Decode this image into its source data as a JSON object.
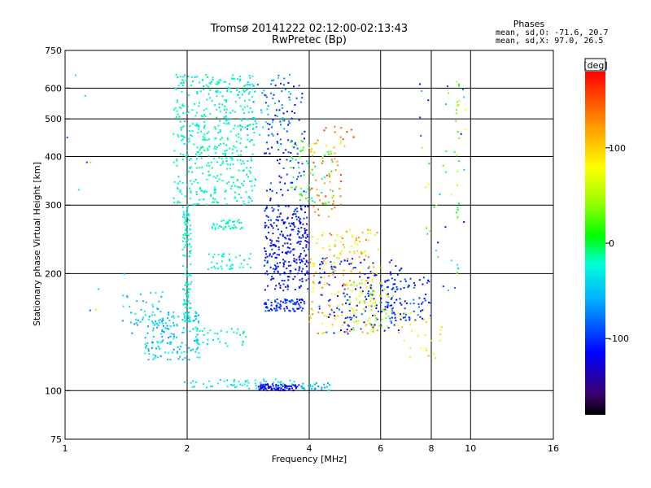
{
  "chart_data": {
    "type": "scatter",
    "title": "Tromsø 20141222 02:12:00-02:13:43",
    "subtitle": "RwPretec (Bp)",
    "xlabel": "Frequency [MHz]",
    "ylabel": "Stationary phase Virtual Height [km]",
    "x_scale": "log",
    "y_scale": "log",
    "xlim": [
      1,
      16
    ],
    "ylim": [
      75,
      750
    ],
    "x_ticks": [
      {
        "value": 1,
        "label": "1"
      },
      {
        "value": 2,
        "label": "2"
      },
      {
        "value": 4,
        "label": "4"
      },
      {
        "value": 6,
        "label": "6"
      },
      {
        "value": 8,
        "label": "8"
      },
      {
        "value": 10,
        "label": "10"
      },
      {
        "value": 16,
        "label": "16"
      }
    ],
    "x_grid": [
      2,
      4,
      6,
      8,
      10
    ],
    "y_ticks": [
      {
        "value": 75,
        "label": "75"
      },
      {
        "value": 100,
        "label": "100"
      },
      {
        "value": 200,
        "label": "200"
      },
      {
        "value": 300,
        "label": "300"
      },
      {
        "value": 400,
        "label": "400"
      },
      {
        "value": 500,
        "label": "500"
      },
      {
        "value": 600,
        "label": "600"
      },
      {
        "value": 750,
        "label": "750"
      }
    ],
    "y_grid": [
      100,
      200,
      300,
      400,
      500,
      600
    ],
    "grid": true,
    "stats": {
      "header": "Phases",
      "line1": "mean, sd,O: -71.6, 20.7",
      "line2": "mean, sd,X:  97.0, 26.5"
    },
    "colorbar": {
      "label": "[deg]",
      "range": [
        -180,
        180
      ],
      "ticks": [
        {
          "value": 100,
          "label": "100"
        },
        {
          "value": 0,
          "label": "0"
        },
        {
          "value": -100,
          "label": "-100"
        }
      ]
    },
    "clusters": [
      {
        "x": [
          1.85,
          2.95
        ],
        "y": [
          300,
          650
        ],
        "phase": [
          -40,
          -5
        ],
        "n": 500
      },
      {
        "x": [
          1.95,
          2.05
        ],
        "y": [
          150,
          300
        ],
        "phase": [
          -40,
          -10
        ],
        "n": 120
      },
      {
        "x": [
          1.55,
          2.15
        ],
        "y": [
          120,
          160
        ],
        "phase": [
          -70,
          -20
        ],
        "n": 150
      },
      {
        "x": [
          1.38,
          1.75
        ],
        "y": [
          140,
          180
        ],
        "phase": [
          -70,
          -20
        ],
        "n": 40
      },
      {
        "x": [
          2.1,
          2.8
        ],
        "y": [
          130,
          145
        ],
        "phase": [
          -40,
          -10
        ],
        "n": 40
      },
      {
        "x": [
          2.3,
          2.75
        ],
        "y": [
          260,
          275
        ],
        "phase": [
          -40,
          -10
        ],
        "n": 40
      },
      {
        "x": [
          2.25,
          2.9
        ],
        "y": [
          205,
          225
        ],
        "phase": [
          -30,
          -10
        ],
        "n": 40
      },
      {
        "x": [
          1.95,
          3.7
        ],
        "y": [
          101,
          107
        ],
        "phase": [
          -50,
          -15
        ],
        "n": 60
      },
      {
        "x": [
          3.0,
          3.8
        ],
        "y": [
          100,
          104
        ],
        "phase": [
          -130,
          -100
        ],
        "n": 80
      },
      {
        "x": [
          3.8,
          4.5
        ],
        "y": [
          100,
          105
        ],
        "phase": [
          -70,
          -30
        ],
        "n": 30
      },
      {
        "x": [
          3.1,
          4.0
        ],
        "y": [
          180,
          300
        ],
        "phase": [
          -130,
          -90
        ],
        "n": 280
      },
      {
        "x": [
          3.1,
          3.9
        ],
        "y": [
          160,
          172
        ],
        "phase": [
          -120,
          -80
        ],
        "n": 80
      },
      {
        "x": [
          3.1,
          3.9
        ],
        "y": [
          300,
          620
        ],
        "phase": [
          -130,
          -80
        ],
        "n": 100
      },
      {
        "x": [
          2.8,
          3.6
        ],
        "y": [
          450,
          650
        ],
        "phase": [
          -80,
          -30
        ],
        "n": 50
      },
      {
        "x": [
          3.6,
          4.6
        ],
        "y": [
          300,
          440
        ],
        "phase": [
          -20,
          30
        ],
        "n": 60
      },
      {
        "x": [
          4.0,
          4.8
        ],
        "y": [
          280,
          400
        ],
        "phase": [
          110,
          160
        ],
        "n": 40
      },
      {
        "x": [
          4.0,
          6.0
        ],
        "y": [
          140,
          260
        ],
        "phase": [
          60,
          140
        ],
        "n": 180
      },
      {
        "x": [
          4.2,
          6.8
        ],
        "y": [
          140,
          220
        ],
        "phase": [
          -130,
          -80
        ],
        "n": 150
      },
      {
        "x": [
          5.0,
          6.5
        ],
        "y": [
          140,
          190
        ],
        "phase": [
          20,
          70
        ],
        "n": 60
      },
      {
        "x": [
          6.0,
          8.0
        ],
        "y": [
          150,
          200
        ],
        "phase": [
          -130,
          -70
        ],
        "n": 80
      },
      {
        "x": [
          6.5,
          8.5
        ],
        "y": [
          120,
          160
        ],
        "phase": [
          60,
          120
        ],
        "n": 30
      },
      {
        "x": [
          4.2,
          5.2
        ],
        "y": [
          430,
          480
        ],
        "phase": [
          130,
          170
        ],
        "n": 12
      },
      {
        "x": [
          4.0,
          5.0
        ],
        "y": [
          400,
          440
        ],
        "phase": [
          80,
          120
        ],
        "n": 15
      },
      {
        "x": [
          9.2,
          9.4
        ],
        "y": [
          200,
          650
        ],
        "phase": [
          -20,
          60
        ],
        "n": 25
      },
      {
        "x": [
          7.5,
          9.8
        ],
        "y": [
          180,
          620
        ],
        "phase": [
          -120,
          100
        ],
        "n": 40
      },
      {
        "x": [
          1.0,
          1.4
        ],
        "y": [
          80,
          650
        ],
        "phase": [
          -120,
          80
        ],
        "n": 10
      }
    ]
  }
}
